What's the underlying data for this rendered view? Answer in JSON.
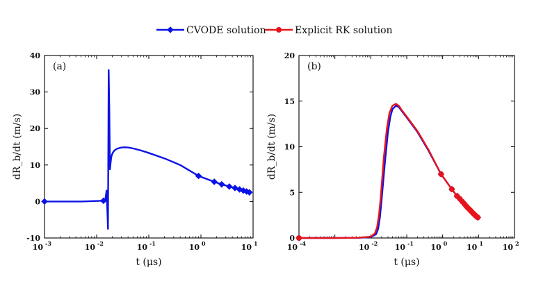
{
  "chart_data": [
    {
      "type": "line",
      "panel_label": "(a)",
      "xscale": "log",
      "xlim_exp": [
        -3,
        1
      ],
      "xticks": [
        {
          "base": "10",
          "exp": "-3",
          "value_exp": -3
        },
        {
          "base": "10",
          "exp": "-2",
          "value_exp": -2
        },
        {
          "base": "10",
          "exp": "-1",
          "value_exp": -1
        },
        {
          "base": "10",
          "exp": "0",
          "value_exp": 0
        },
        {
          "base": "10",
          "exp": "1",
          "value_exp": 1
        }
      ],
      "ylim": [
        -10,
        40
      ],
      "yticks": [
        -10,
        0,
        10,
        20,
        30,
        40
      ],
      "xlabel": "t (μs)",
      "ylabel": "dR_b/dt (m/s)",
      "series": [
        {
          "name": "CVODE solution",
          "color": "#0b12e6",
          "marker": "diamond",
          "x": [
            0.001,
            0.005,
            0.0135,
            0.0145,
            0.0155,
            0.016,
            0.0165,
            0.017,
            0.0175,
            0.018,
            0.0185,
            0.019,
            0.0195,
            0.0205,
            0.022,
            0.025,
            0.03,
            0.035,
            0.04,
            0.05,
            0.07,
            0.1,
            0.2,
            0.4,
            0.9,
            1.8,
            2.5,
            3.5,
            4.5,
            5.5,
            6.5,
            7.5,
            8.5
          ],
          "y": [
            0,
            0,
            0.2,
            0.0,
            3.0,
            -2.0,
            -7.5,
            36.0,
            25.0,
            8.8,
            10.5,
            12.0,
            12.7,
            13.4,
            14.0,
            14.5,
            14.8,
            14.85,
            14.8,
            14.55,
            14.0,
            13.3,
            11.8,
            10.0,
            7.0,
            5.4,
            4.7,
            4.1,
            3.7,
            3.3,
            3.0,
            2.75,
            2.5
          ],
          "marker_x": [
            0.001,
            0.0135,
            0.9,
            1.8,
            2.5,
            3.5,
            4.5,
            5.5,
            6.5,
            7.5,
            8.5
          ],
          "marker_y": [
            0,
            0.2,
            7.0,
            5.4,
            4.7,
            4.1,
            3.7,
            3.3,
            3.0,
            2.75,
            2.5
          ]
        }
      ]
    },
    {
      "type": "line",
      "panel_label": "(b)",
      "xscale": "log",
      "xlim_exp": [
        -4,
        2
      ],
      "xticks": [
        {
          "base": "10",
          "exp": "-4",
          "value_exp": -4
        },
        {
          "base": "10",
          "exp": "-2",
          "value_exp": -2
        },
        {
          "base": "10",
          "exp": "-1",
          "value_exp": -1
        },
        {
          "base": "10",
          "exp": "0",
          "value_exp": 0
        },
        {
          "base": "10",
          "exp": "1",
          "value_exp": 1
        },
        {
          "base": "10",
          "exp": "2",
          "value_exp": 2
        }
      ],
      "ylim": [
        0,
        20
      ],
      "yticks": [
        0,
        5,
        10,
        15,
        20
      ],
      "xlabel": "t (μs)",
      "ylabel": "dR_b/dt (m/s)",
      "series": [
        {
          "name": "CVODE solution",
          "color": "#0b12e6",
          "marker": "diamond",
          "x": [
            0.0001,
            0.001,
            0.005,
            0.01,
            0.014,
            0.016,
            0.018,
            0.02,
            0.025,
            0.03,
            0.035,
            0.04,
            0.05,
            0.06,
            0.07,
            0.1,
            0.2,
            0.4,
            0.9,
            1.8,
            2.5,
            3.5,
            4.5,
            5.5,
            6.5,
            7.5,
            8.5,
            9.5
          ],
          "y": [
            0,
            0,
            0.02,
            0.1,
            0.4,
            1.0,
            2.3,
            4.2,
            8.5,
            11.6,
            13.3,
            14.1,
            14.5,
            14.35,
            14.0,
            13.2,
            11.6,
            9.6,
            7.0,
            5.35,
            4.6,
            4.0,
            3.5,
            3.15,
            2.85,
            2.6,
            2.4,
            2.25
          ],
          "marker_x": [
            0.0001,
            0.9,
            1.8,
            2.5,
            3.5,
            4.5,
            5.5,
            6.5,
            7.5,
            8.5,
            9.5
          ],
          "marker_y": [
            0,
            7.0,
            5.35,
            4.6,
            4.0,
            3.5,
            3.15,
            2.85,
            2.6,
            2.4,
            2.25
          ]
        },
        {
          "name": "Explicit RK solution",
          "color": "#e8141b",
          "marker": "circle",
          "x": [
            0.0001,
            0.001,
            0.005,
            0.01,
            0.013,
            0.015,
            0.017,
            0.019,
            0.023,
            0.028,
            0.033,
            0.04,
            0.05,
            0.06,
            0.07,
            0.1,
            0.2,
            0.4,
            0.9,
            1.8,
            2.5,
            3.0,
            3.5,
            4.0,
            4.5,
            5.0,
            5.5,
            6.0,
            6.5,
            7.0,
            7.5,
            8.0,
            8.5,
            9.0,
            9.5
          ],
          "y": [
            0,
            0,
            0.03,
            0.15,
            0.5,
            1.2,
            2.6,
            4.6,
            8.8,
            12.0,
            13.7,
            14.5,
            14.7,
            14.5,
            14.1,
            13.3,
            11.7,
            9.7,
            7.0,
            5.35,
            4.6,
            4.3,
            4.0,
            3.75,
            3.5,
            3.3,
            3.15,
            3.0,
            2.85,
            2.72,
            2.6,
            2.5,
            2.4,
            2.32,
            2.25
          ],
          "marker_x": [
            0.0001,
            0.9,
            1.8,
            2.5,
            3.0,
            3.5,
            4.0,
            4.5,
            5.0,
            5.5,
            6.0,
            6.5,
            7.0,
            7.5,
            8.0,
            8.5,
            9.0,
            9.5
          ],
          "marker_y": [
            0,
            7.0,
            5.35,
            4.6,
            4.3,
            4.0,
            3.75,
            3.5,
            3.3,
            3.15,
            3.0,
            2.85,
            2.72,
            2.6,
            2.5,
            2.4,
            2.32,
            2.25
          ]
        }
      ]
    }
  ],
  "legend": {
    "placement": "top-center",
    "entries": [
      {
        "label": "CVODE solution",
        "color": "#0b12e6",
        "marker": "diamond"
      },
      {
        "label": "Explicit RK solution",
        "color": "#e8141b",
        "marker": "circle"
      }
    ]
  }
}
